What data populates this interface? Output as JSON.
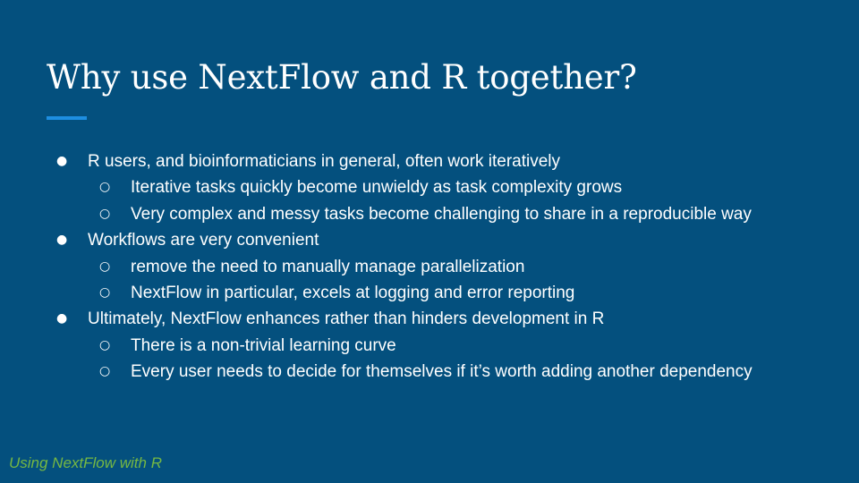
{
  "slide": {
    "title": "Why use NextFlow and R together?",
    "footer": "Using NextFlow with R",
    "bullet_marker_level1": "●",
    "bullet_marker_level2": "○",
    "colors": {
      "background": "#04507e",
      "text": "#ffffff",
      "accent": "#1e8ee0",
      "footer": "#76b843"
    },
    "bullets": [
      {
        "level": 1,
        "text": "R users, and bioinformaticians  in general, often work iteratively"
      },
      {
        "level": 2,
        "text": "Iterative tasks quickly become unwieldy as task complexity grows"
      },
      {
        "level": 2,
        "text": "Very complex and messy tasks become challenging to share in a reproducible way"
      },
      {
        "level": 1,
        "text": "Workflows are very convenient"
      },
      {
        "level": 2,
        "text": "remove the need to manually manage parallelization"
      },
      {
        "level": 2,
        "text": "NextFlow in particular, excels at logging and error reporting"
      },
      {
        "level": 1,
        "text": "Ultimately, NextFlow enhances rather than hinders development  in R"
      },
      {
        "level": 2,
        "text": "There is a non-trivial learning curve"
      },
      {
        "level": 2,
        "text": "Every user needs to decide for themselves if it’s worth adding another dependency"
      }
    ]
  }
}
